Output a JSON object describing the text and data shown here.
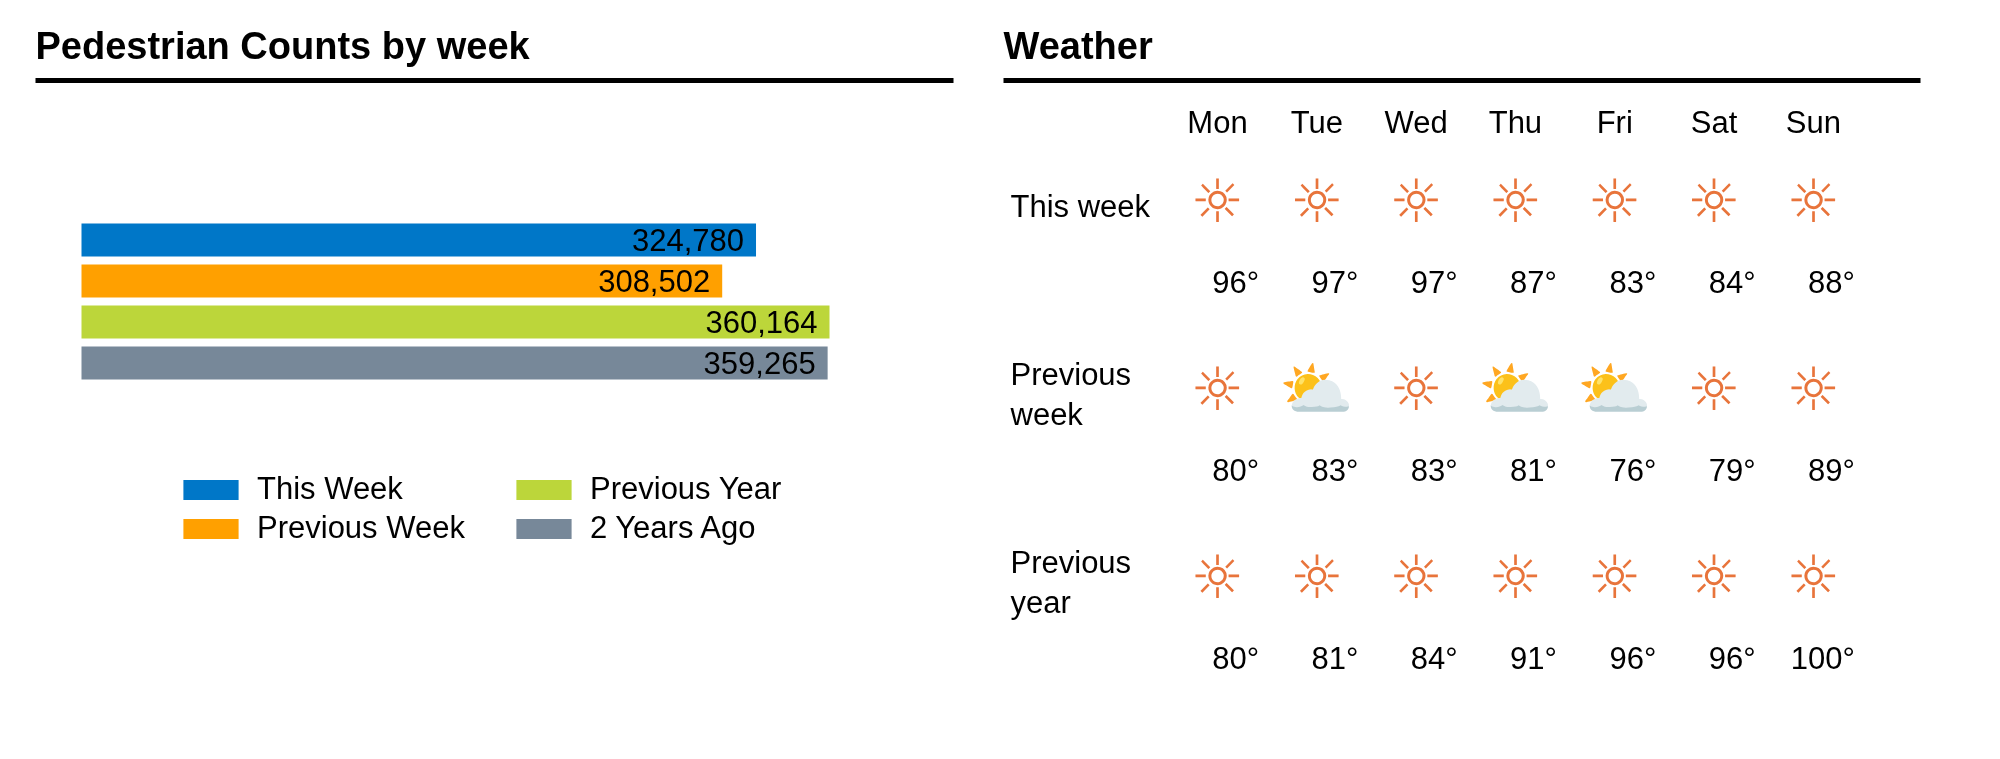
{
  "chart_data": [
    {
      "type": "bar",
      "orientation": "horizontal",
      "title": "Pedestrian Counts by week",
      "categories": [
        null
      ],
      "series": [
        {
          "name": "This Week",
          "color": "#0077c8",
          "values": [
            324780
          ],
          "value_labels": [
            "324,780"
          ]
        },
        {
          "name": "Previous Week",
          "color": "#ffa000",
          "values": [
            308502
          ],
          "value_labels": [
            "308,502"
          ]
        },
        {
          "name": "Previous Year",
          "color": "#bcd63a",
          "values": [
            360164
          ],
          "value_labels": [
            "360,164"
          ]
        },
        {
          "name": "2 Years Ago",
          "color": "#778899",
          "values": [
            359265
          ],
          "value_labels": [
            "359,265"
          ]
        }
      ],
      "legend": "bottom",
      "tick_labels": false
    },
    {
      "type": "other",
      "title": "Weather",
      "categories": [
        "Mon",
        "Tue",
        "Wed",
        "Thu",
        "Fri",
        "Sat",
        "Sun"
      ],
      "y_categories": [
        "This week",
        "Previous week",
        "Previous year"
      ],
      "cell_labels": [
        [
          "96°",
          "97°",
          "97°",
          "87°",
          "83°",
          "84°",
          "88°"
        ],
        [
          "80°",
          "83°",
          "83°",
          "81°",
          "76°",
          "79°",
          "89°"
        ],
        [
          "80°",
          "81°",
          "84°",
          "91°",
          "96°",
          "96°",
          "100°"
        ]
      ],
      "annotations": [
        {
          "text": "☼",
          "x": "Mon",
          "y": "This week"
        },
        {
          "text": "☼",
          "x": "Tue",
          "y": "This week"
        },
        {
          "text": "☼",
          "x": "Wed",
          "y": "This week"
        },
        {
          "text": "☼",
          "x": "Thu",
          "y": "This week"
        },
        {
          "text": "☼",
          "x": "Fri",
          "y": "This week"
        },
        {
          "text": "☼",
          "x": "Sat",
          "y": "This week"
        },
        {
          "text": "☼",
          "x": "Sun",
          "y": "This week"
        },
        {
          "text": "☼",
          "x": "Mon",
          "y": "Previous week"
        },
        {
          "text": "⛅",
          "x": "Tue",
          "y": "Previous week"
        },
        {
          "text": "☼",
          "x": "Wed",
          "y": "Previous week"
        },
        {
          "text": "⛅",
          "x": "Thu",
          "y": "Previous week"
        },
        {
          "text": "⛅",
          "x": "Fri",
          "y": "Previous week"
        },
        {
          "text": "☼",
          "x": "Sat",
          "y": "Previous week"
        },
        {
          "text": "☼",
          "x": "Sun",
          "y": "Previous week"
        },
        {
          "text": "☼",
          "x": "Mon",
          "y": "Previous year"
        },
        {
          "text": "☼",
          "x": "Tue",
          "y": "Previous year"
        },
        {
          "text": "☼",
          "x": "Wed",
          "y": "Previous year"
        },
        {
          "text": "☼",
          "x": "Thu",
          "y": "Previous year"
        },
        {
          "text": "☼",
          "x": "Fri",
          "y": "Previous year"
        },
        {
          "text": "☼",
          "x": "Sat",
          "y": "Previous year"
        },
        {
          "text": "☼",
          "x": "Sun",
          "y": "Previous year"
        }
      ]
    }
  ]
}
